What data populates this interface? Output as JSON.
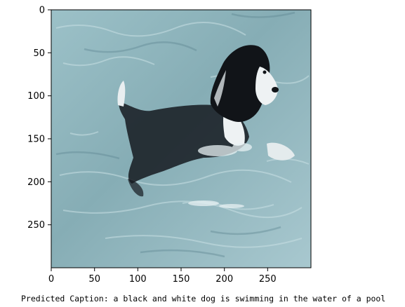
{
  "image": {
    "subject": "black and white dog swimming in pool water",
    "x_ticks": [
      "0",
      "50",
      "100",
      "150",
      "200",
      "250"
    ],
    "y_ticks": [
      "0",
      "50",
      "100",
      "150",
      "200",
      "250"
    ],
    "colors": {
      "water_light": "#a9c9cf",
      "water_mid": "#7fa6ae",
      "water_dark": "#5f8590",
      "dog_black": "#111418",
      "dog_white": "#eef2f3"
    }
  },
  "caption": "Predicted Caption:  a black and white dog is swimming in the water of a pool"
}
